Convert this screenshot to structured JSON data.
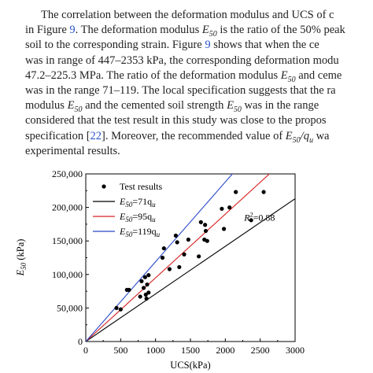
{
  "paragraph": {
    "lines": [
      {
        "indent": 52,
        "segments": [
          {
            "t": "The correlation between the deformation modulus and UCS of c"
          }
        ]
      },
      {
        "indent": 32,
        "segments": [
          {
            "t": "in Figure "
          },
          {
            "t": "9",
            "ref": true
          },
          {
            "t": ". The deformation modulus "
          },
          {
            "t": "E",
            "i": true
          },
          {
            "t": "50",
            "sub": true,
            "i": true
          },
          {
            "t": " is the ratio of the 50% peak"
          }
        ]
      },
      {
        "indent": 32,
        "segments": [
          {
            "t": "soil to the corresponding strain. Figure "
          },
          {
            "t": "9",
            "ref": true
          },
          {
            "t": " shows that when the ce"
          }
        ]
      },
      {
        "indent": 32,
        "segments": [
          {
            "t": "was in range of 447–2353 kPa, the corresponding deformation modu"
          }
        ]
      },
      {
        "indent": 32,
        "segments": [
          {
            "t": "47.2–225.3 MPa. The ratio of the deformation modulus "
          },
          {
            "t": "E",
            "i": true
          },
          {
            "t": "50",
            "sub": true,
            "i": true
          },
          {
            "t": " and ceme"
          }
        ]
      },
      {
        "indent": 32,
        "segments": [
          {
            "t": "was in the range 71–119. The local specification suggests that the ra"
          }
        ]
      },
      {
        "indent": 32,
        "segments": [
          {
            "t": "modulus "
          },
          {
            "t": "E",
            "i": true
          },
          {
            "t": "50",
            "sub": true,
            "i": true
          },
          {
            "t": " and the cemented soil strength "
          },
          {
            "t": "E",
            "i": true
          },
          {
            "t": "50",
            "sub": true,
            "i": true
          },
          {
            "t": " was in the range"
          }
        ]
      },
      {
        "indent": 32,
        "segments": [
          {
            "t": "considered that the test result in this study was close to the propos"
          }
        ]
      },
      {
        "indent": 32,
        "segments": [
          {
            "t": "specification ["
          },
          {
            "t": "22",
            "ref": true
          },
          {
            "t": "]. Moreover, the recommended value of "
          },
          {
            "t": "E",
            "i": true
          },
          {
            "t": "50",
            "sub": true,
            "i": true
          },
          {
            "t": "/",
            "i": true
          },
          {
            "t": "q",
            "i": true
          },
          {
            "t": "u",
            "sub": true,
            "i": true
          },
          {
            "t": " wa"
          }
        ]
      },
      {
        "indent": 32,
        "segments": [
          {
            "t": "experimental results."
          }
        ]
      }
    ]
  },
  "colors": {
    "accent_blue": "#2a54c8",
    "line_black": "#000000",
    "line_red": "#d62020",
    "line_blue": "#2848c8"
  },
  "chart_data": {
    "type": "scatter",
    "xlabel": "UCS(kPa)",
    "ylabel": {
      "main": "E",
      "sub": "50",
      "unit": " (kPa)"
    },
    "xlim": [
      0,
      3000
    ],
    "ylim": [
      0,
      250000
    ],
    "x_ticks": [
      0,
      500,
      1000,
      1500,
      2000,
      2500,
      3000
    ],
    "y_ticks": [
      0,
      50000,
      100000,
      150000,
      200000,
      250000
    ],
    "x_tick_labels": [
      "0",
      "500",
      "1000",
      "1500",
      "2000",
      "2500",
      "3000"
    ],
    "y_tick_labels": [
      "0",
      "50,000",
      "100,000",
      "150,000",
      "200,000",
      "250,000"
    ],
    "annotation": {
      "label": "R",
      "sup": "2",
      "rest": "=0.88",
      "x": 2270,
      "y": 185000
    },
    "legend_position": "top-left",
    "scatter": {
      "name": "Test results",
      "points": [
        [
          440,
          50000
        ],
        [
          500,
          48000
        ],
        [
          590,
          77000
        ],
        [
          620,
          77000
        ],
        [
          780,
          67000
        ],
        [
          800,
          90000
        ],
        [
          830,
          80000
        ],
        [
          850,
          96000
        ],
        [
          860,
          70000
        ],
        [
          870,
          64000
        ],
        [
          880,
          85000
        ],
        [
          900,
          99000
        ],
        [
          900,
          73000
        ],
        [
          1100,
          125000
        ],
        [
          1120,
          139000
        ],
        [
          1200,
          108000
        ],
        [
          1290,
          158000
        ],
        [
          1310,
          148000
        ],
        [
          1340,
          111000
        ],
        [
          1410,
          130000
        ],
        [
          1470,
          152000
        ],
        [
          1620,
          127000
        ],
        [
          1650,
          178000
        ],
        [
          1700,
          152000
        ],
        [
          1710,
          174000
        ],
        [
          1720,
          165000
        ],
        [
          1740,
          150000
        ],
        [
          1950,
          198000
        ],
        [
          1980,
          168000
        ],
        [
          2060,
          200000
        ],
        [
          2150,
          223000
        ],
        [
          2370,
          181000
        ],
        [
          2550,
          223000
        ]
      ]
    },
    "lines": [
      {
        "name": "71q",
        "color_key": "line_black",
        "slope": 71
      },
      {
        "name": "95q",
        "color_key": "line_red",
        "slope": 95
      },
      {
        "name": "119q",
        "color_key": "line_blue",
        "slope": 119
      }
    ],
    "legend_labels": {
      "points": "Test results",
      "lines": [
        {
          "e": "E",
          "sub": "50",
          "eq": "=71q",
          "u": "u"
        },
        {
          "e": "E",
          "sub": "50",
          "eq": "=95q",
          "u": "u"
        },
        {
          "e": "E",
          "sub": "50",
          "eq": "=119q",
          "u": "u"
        }
      ]
    }
  }
}
